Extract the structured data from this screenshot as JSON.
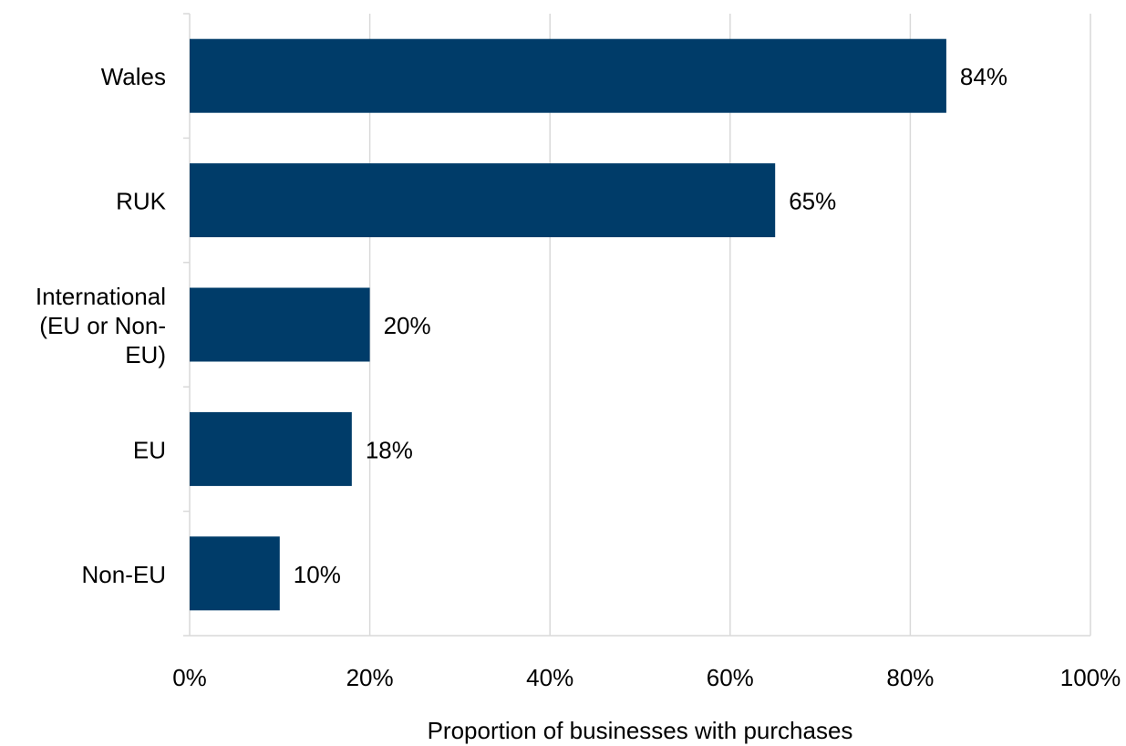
{
  "chart_data": {
    "type": "bar",
    "orientation": "horizontal",
    "categories": [
      "Wales",
      "RUK",
      "International (EU or Non-EU)",
      "EU",
      "Non-EU"
    ],
    "category_lines": [
      [
        "Wales"
      ],
      [
        "RUK"
      ],
      [
        "International",
        "(EU or Non-",
        "EU)"
      ],
      [
        "EU"
      ],
      [
        "Non-EU"
      ]
    ],
    "values": [
      84,
      65,
      20,
      18,
      10
    ],
    "value_labels": [
      "84%",
      "65%",
      "20%",
      "18%",
      "10%"
    ],
    "xlabel": "Proportion of businesses with purchases",
    "ylabel": "",
    "xlim": [
      0,
      100
    ],
    "x_ticks": [
      0,
      20,
      40,
      60,
      80,
      100
    ],
    "x_tick_labels": [
      "0%",
      "20%",
      "40%",
      "60%",
      "80%",
      "100%"
    ],
    "grid": "vertical",
    "legend": "none",
    "bar_color": "#003c69"
  }
}
